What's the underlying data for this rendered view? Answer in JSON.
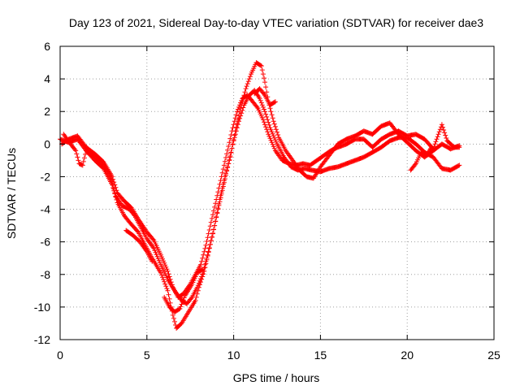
{
  "chart_data": {
    "type": "scatter",
    "title": "Day 123 of 2021, Sidereal Day-to-day VTEC variation (SDTVAR) for receiver dae3",
    "xlabel": "GPS time / hours",
    "ylabel": "SDTVAR / TECUs",
    "xlim": [
      0,
      25
    ],
    "ylim": [
      -12,
      6
    ],
    "xticks": [
      0,
      5,
      10,
      15,
      20,
      25
    ],
    "yticks": [
      -12,
      -10,
      -8,
      -6,
      -4,
      -2,
      0,
      2,
      4,
      6
    ],
    "grid": true,
    "legend": "none",
    "marker": "plus",
    "series_color": "#ff0000",
    "series": [
      {
        "name": "trace-a",
        "points": [
          [
            0.0,
            0.3
          ],
          [
            0.5,
            0.1
          ],
          [
            1.0,
            0.3
          ],
          [
            1.5,
            -0.4
          ],
          [
            2.0,
            -1.0
          ],
          [
            2.5,
            -1.5
          ],
          [
            3.0,
            -2.5
          ],
          [
            3.3,
            -3.6
          ],
          [
            3.7,
            -4.4
          ],
          [
            4.0,
            -4.8
          ],
          [
            4.5,
            -5.4
          ],
          [
            4.9,
            -6.2
          ],
          [
            5.3,
            -7.0
          ],
          [
            5.8,
            -7.9
          ],
          [
            6.2,
            -9.0
          ],
          [
            6.5,
            -10.5
          ],
          [
            6.7,
            -11.3
          ],
          [
            7.0,
            -11.0
          ],
          [
            7.4,
            -10.3
          ],
          [
            7.8,
            -9.6
          ],
          [
            8.0,
            -8.8
          ],
          [
            8.3,
            -7.8
          ],
          [
            8.6,
            -6.4
          ],
          [
            8.9,
            -5.0
          ],
          [
            9.2,
            -3.4
          ],
          [
            9.5,
            -2.0
          ],
          [
            9.8,
            -0.8
          ],
          [
            10.1,
            0.8
          ],
          [
            10.4,
            2.2
          ],
          [
            10.7,
            3.4
          ],
          [
            11.0,
            4.3
          ],
          [
            11.3,
            5.0
          ],
          [
            11.6,
            4.8
          ],
          [
            11.8,
            3.8
          ],
          [
            12.0,
            2.6
          ],
          [
            12.3,
            1.4
          ],
          [
            12.6,
            0.4
          ],
          [
            13.0,
            -0.4
          ],
          [
            13.4,
            -1.0
          ],
          [
            13.8,
            -1.6
          ],
          [
            14.2,
            -2.0
          ],
          [
            14.6,
            -2.1
          ],
          [
            15.0,
            -1.4
          ],
          [
            15.5,
            -0.7
          ],
          [
            16.0,
            0.0
          ],
          [
            16.5,
            0.3
          ],
          [
            17.0,
            0.5
          ],
          [
            17.5,
            0.8
          ],
          [
            18.0,
            0.6
          ],
          [
            18.5,
            1.1
          ],
          [
            19.0,
            1.3
          ],
          [
            19.5,
            0.6
          ],
          [
            20.0,
            0.1
          ],
          [
            20.5,
            -0.4
          ],
          [
            21.0,
            -0.8
          ],
          [
            21.5,
            -0.4
          ],
          [
            22.0,
            0.0
          ],
          [
            22.5,
            -0.3
          ],
          [
            23.0,
            -0.1
          ]
        ]
      },
      {
        "name": "trace-b",
        "points": [
          [
            0.2,
            0.6
          ],
          [
            0.6,
            0.0
          ],
          [
            0.9,
            -0.4
          ],
          [
            1.1,
            -1.2
          ],
          [
            1.3,
            -1.3
          ],
          [
            1.5,
            -0.4
          ],
          [
            2.0,
            -0.8
          ],
          [
            2.5,
            -1.3
          ],
          [
            3.0,
            -2.3
          ],
          [
            3.2,
            -3.2
          ],
          [
            3.6,
            -3.8
          ],
          [
            4.0,
            -4.0
          ],
          [
            4.3,
            -4.4
          ],
          [
            4.6,
            -5.0
          ],
          [
            5.0,
            -5.8
          ],
          [
            5.4,
            -6.4
          ],
          [
            5.8,
            -7.4
          ],
          [
            6.2,
            -8.3
          ],
          [
            6.6,
            -9.0
          ],
          [
            7.0,
            -9.6
          ],
          [
            7.3,
            -9.8
          ],
          [
            7.6,
            -9.4
          ],
          [
            7.9,
            -8.8
          ],
          [
            8.2,
            -8.0
          ],
          [
            8.5,
            -6.8
          ],
          [
            8.8,
            -5.5
          ],
          [
            9.1,
            -4.0
          ],
          [
            9.4,
            -2.6
          ],
          [
            9.7,
            -1.2
          ],
          [
            10.0,
            0.2
          ],
          [
            10.3,
            1.4
          ],
          [
            10.6,
            2.4
          ],
          [
            10.9,
            3.0
          ],
          [
            11.2,
            3.3
          ],
          [
            11.5,
            2.8
          ],
          [
            11.8,
            2.0
          ],
          [
            12.1,
            1.0
          ],
          [
            12.5,
            0.0
          ],
          [
            12.9,
            -0.8
          ],
          [
            13.3,
            -1.4
          ],
          [
            13.7,
            -1.6
          ],
          [
            14.1,
            -1.5
          ],
          [
            14.5,
            -1.6
          ],
          [
            15.0,
            -1.7
          ],
          [
            15.5,
            -1.5
          ],
          [
            16.0,
            -1.4
          ],
          [
            16.5,
            -1.2
          ],
          [
            17.0,
            -1.0
          ],
          [
            17.5,
            -0.8
          ],
          [
            18.0,
            -0.5
          ],
          [
            18.5,
            -0.2
          ],
          [
            19.0,
            0.2
          ],
          [
            19.5,
            0.4
          ],
          [
            20.0,
            0.4
          ],
          [
            20.5,
            0.0
          ],
          [
            21.0,
            -0.5
          ],
          [
            21.5,
            -0.8
          ],
          [
            22.0,
            -1.5
          ],
          [
            22.5,
            -1.6
          ],
          [
            23.0,
            -1.3
          ]
        ]
      },
      {
        "name": "trace-c",
        "points": [
          [
            0.1,
            0.0
          ],
          [
            0.5,
            0.3
          ],
          [
            1.0,
            0.5
          ],
          [
            1.5,
            -0.2
          ],
          [
            2.0,
            -0.6
          ],
          [
            2.5,
            -1.1
          ],
          [
            3.0,
            -2.0
          ],
          [
            3.3,
            -3.0
          ],
          [
            3.7,
            -3.5
          ],
          [
            4.1,
            -3.9
          ],
          [
            4.5,
            -4.6
          ],
          [
            5.0,
            -5.4
          ],
          [
            5.4,
            -5.9
          ],
          [
            5.8,
            -6.8
          ],
          [
            6.2,
            -7.8
          ],
          [
            6.5,
            -8.8
          ],
          [
            6.8,
            -9.4
          ],
          [
            7.1,
            -9.2
          ],
          [
            7.5,
            -8.6
          ],
          [
            7.8,
            -8.0
          ],
          [
            8.1,
            -7.4
          ],
          [
            8.4,
            -6.2
          ],
          [
            8.7,
            -4.8
          ],
          [
            9.0,
            -3.4
          ],
          [
            9.3,
            -2.0
          ],
          [
            9.6,
            -0.6
          ],
          [
            9.9,
            0.8
          ],
          [
            10.2,
            2.0
          ],
          [
            10.5,
            2.8
          ],
          [
            10.8,
            3.0
          ],
          [
            11.1,
            2.6
          ],
          [
            11.4,
            2.2
          ],
          [
            11.7,
            1.5
          ],
          [
            12.0,
            0.6
          ],
          [
            12.4,
            -0.4
          ],
          [
            12.8,
            -1.0
          ],
          [
            13.2,
            -1.2
          ],
          [
            13.6,
            -1.3
          ],
          [
            14.0,
            -1.2
          ],
          [
            14.4,
            -1.3
          ],
          [
            14.8,
            -1.0
          ],
          [
            15.2,
            -0.7
          ],
          [
            15.6,
            -0.4
          ],
          [
            16.0,
            -0.2
          ],
          [
            16.5,
            0.0
          ],
          [
            17.0,
            0.3
          ],
          [
            17.5,
            0.3
          ],
          [
            18.0,
            -0.2
          ],
          [
            18.5,
            0.3
          ],
          [
            19.0,
            0.6
          ],
          [
            19.5,
            0.8
          ],
          [
            20.0,
            0.5
          ],
          [
            20.5,
            0.6
          ],
          [
            21.0,
            0.3
          ],
          [
            21.5,
            -0.3
          ],
          [
            22.0,
            1.2
          ],
          [
            22.3,
            0.2
          ],
          [
            22.7,
            -0.2
          ],
          [
            23.0,
            -0.2
          ]
        ]
      },
      {
        "name": "trace-d",
        "points": [
          [
            3.8,
            -5.3
          ],
          [
            4.2,
            -5.6
          ],
          [
            4.6,
            -6.0
          ],
          [
            5.0,
            -6.6
          ],
          [
            5.3,
            -7.2
          ]
        ]
      },
      {
        "name": "trace-e",
        "points": [
          [
            6.0,
            -9.4
          ],
          [
            6.3,
            -10.0
          ],
          [
            6.6,
            -10.3
          ],
          [
            6.9,
            -10.1
          ],
          [
            7.2,
            -9.3
          ],
          [
            7.6,
            -8.6
          ],
          [
            7.9,
            -7.9
          ],
          [
            8.2,
            -7.7
          ]
        ]
      },
      {
        "name": "trace-f",
        "points": [
          [
            11.2,
            3.1
          ],
          [
            11.5,
            3.4
          ],
          [
            11.8,
            3.0
          ],
          [
            12.1,
            2.4
          ],
          [
            12.4,
            2.6
          ]
        ]
      },
      {
        "name": "trace-g",
        "points": [
          [
            20.2,
            -1.6
          ],
          [
            20.5,
            -1.2
          ],
          [
            20.8,
            -0.5
          ],
          [
            21.1,
            -0.7
          ],
          [
            21.4,
            -0.2
          ]
        ]
      }
    ]
  }
}
